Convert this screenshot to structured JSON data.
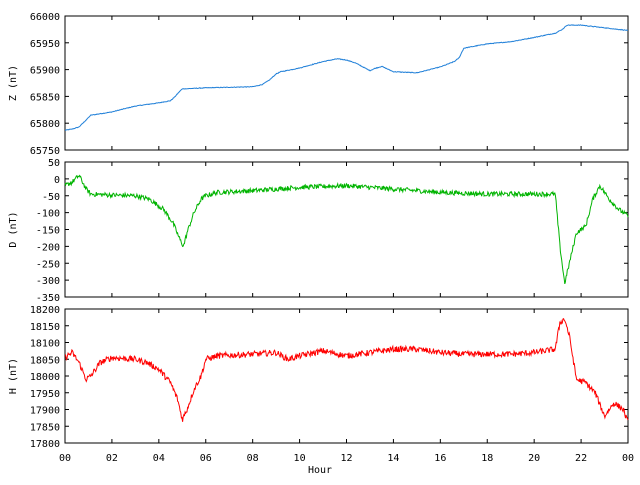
{
  "chart_data": [
    {
      "type": "line",
      "id": "z",
      "ylabel": "Z (nT)",
      "ylim": [
        65750,
        66000
      ],
      "yticks": [
        65750,
        65800,
        65850,
        65900,
        65950,
        66000
      ],
      "color": "#1f7fd8",
      "noise": 0.6,
      "series": [
        {
          "x": [
            0,
            0.3,
            0.6,
            0.9,
            1.1,
            2,
            3,
            4,
            4.5,
            4.7,
            4.9,
            5,
            6,
            7,
            8,
            8.4,
            8.7,
            9,
            9.2,
            10,
            11,
            11.6,
            12,
            12.4,
            12.7,
            13,
            13.2,
            13.5,
            14,
            15,
            16,
            16.6,
            16.8,
            17,
            18,
            19,
            20,
            20.9,
            21.2,
            21.4,
            22,
            23,
            24
          ],
          "values": [
            65787,
            65789,
            65793,
            65806,
            65815,
            65821,
            65832,
            65838,
            65842,
            65850,
            65860,
            65864,
            65866,
            65867,
            65868,
            65872,
            65880,
            65892,
            65896,
            65903,
            65915,
            65920,
            65918,
            65912,
            65905,
            65898,
            65902,
            65906,
            65896,
            65894,
            65905,
            65915,
            65922,
            65940,
            65948,
            65952,
            65960,
            65968,
            65975,
            65983,
            65983,
            65978,
            65973
          ]
        }
      ]
    },
    {
      "type": "line",
      "id": "d",
      "ylabel": "D (nT)",
      "ylim": [
        -350,
        50
      ],
      "yticks": [
        -350,
        -300,
        -250,
        -200,
        -150,
        -100,
        -50,
        0,
        50
      ],
      "color": "#00b400",
      "noise": 7,
      "series": [
        {
          "x": [
            0,
            0.3,
            0.6,
            0.9,
            1.1,
            2,
            3,
            3.6,
            4.2,
            4.6,
            4.9,
            5.05,
            5.2,
            5.5,
            5.8,
            6,
            6.5,
            8,
            10,
            12,
            14,
            16,
            18,
            20,
            20.9,
            21.1,
            21.3,
            21.5,
            21.8,
            22.2,
            22.5,
            22.8,
            23.2,
            23.6,
            24
          ],
          "values": [
            -20,
            -10,
            10,
            -30,
            -45,
            -48,
            -50,
            -60,
            -90,
            -130,
            -180,
            -200,
            -160,
            -100,
            -60,
            -50,
            -40,
            -35,
            -25,
            -20,
            -30,
            -40,
            -45,
            -45,
            -45,
            -200,
            -310,
            -250,
            -160,
            -140,
            -60,
            -20,
            -60,
            -90,
            -110
          ]
        }
      ]
    },
    {
      "type": "line",
      "id": "h",
      "ylabel": "H (nT)",
      "ylim": [
        17800,
        18200
      ],
      "yticks": [
        17800,
        17850,
        17900,
        17950,
        18000,
        18050,
        18100,
        18150,
        18200
      ],
      "color": "#ff0000",
      "noise": 9,
      "xlabel": "Hour",
      "xticks": [
        "00",
        "02",
        "04",
        "06",
        "08",
        "10",
        "12",
        "14",
        "16",
        "18",
        "20",
        "22",
        "00"
      ],
      "series": [
        {
          "x": [
            0,
            0.3,
            0.6,
            0.9,
            1.1,
            1.5,
            2,
            3,
            3.5,
            4,
            4.5,
            4.8,
            5.0,
            5.2,
            5.5,
            5.8,
            6,
            6.5,
            8,
            9,
            9.5,
            10,
            11,
            12,
            13,
            14,
            15,
            16,
            17,
            18,
            19,
            20,
            20.9,
            21.1,
            21.3,
            21.5,
            21.8,
            22.2,
            22.6,
            23,
            23.4,
            23.8,
            24
          ],
          "values": [
            18055,
            18070,
            18040,
            17990,
            18000,
            18040,
            18055,
            18050,
            18040,
            18020,
            17980,
            17930,
            17870,
            17900,
            17960,
            18000,
            18050,
            18060,
            18065,
            18070,
            18050,
            18060,
            18075,
            18060,
            18070,
            18080,
            18080,
            18070,
            18065,
            18065,
            18065,
            18070,
            18080,
            18160,
            18170,
            18120,
            17990,
            17980,
            17950,
            17880,
            17920,
            17900,
            17860
          ]
        }
      ]
    }
  ]
}
